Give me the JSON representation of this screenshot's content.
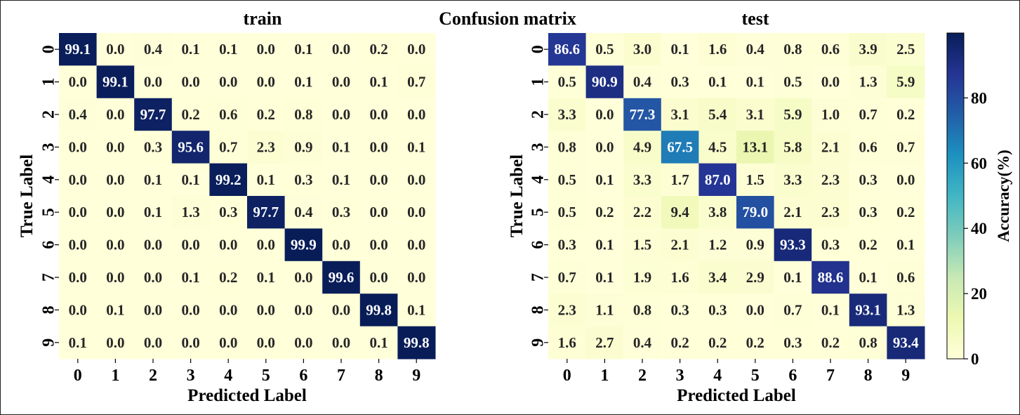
{
  "figure": {
    "title": "Confusion matrix"
  },
  "colorbar": {
    "label": "Accuracy(%)",
    "ticks": [
      0,
      20,
      40,
      60,
      80
    ],
    "range": [
      0,
      99.9
    ],
    "colormap": "YlGnBu",
    "colors": [
      "#ffffd9",
      "#edf8b1",
      "#c7e9b4",
      "#7fcdbb",
      "#41b6c4",
      "#1d91c0",
      "#225ea8",
      "#253494",
      "#081d58"
    ]
  },
  "chart_data": [
    {
      "type": "heatmap",
      "title": "train",
      "xlabel": "Predicted Label",
      "ylabel": "True Label",
      "x_categories": [
        "0",
        "1",
        "2",
        "3",
        "4",
        "5",
        "6",
        "7",
        "8",
        "9"
      ],
      "y_categories": [
        "0",
        "1",
        "2",
        "3",
        "4",
        "5",
        "6",
        "7",
        "8",
        "9"
      ],
      "values": [
        [
          99.1,
          0.0,
          0.4,
          0.1,
          0.1,
          0.0,
          0.1,
          0.0,
          0.2,
          0.0
        ],
        [
          0.0,
          99.1,
          0.0,
          0.0,
          0.0,
          0.0,
          0.1,
          0.0,
          0.1,
          0.7
        ],
        [
          0.4,
          0.0,
          97.7,
          0.2,
          0.6,
          0.2,
          0.8,
          0.0,
          0.0,
          0.0
        ],
        [
          0.0,
          0.0,
          0.3,
          95.6,
          0.7,
          2.3,
          0.9,
          0.1,
          0.0,
          0.1
        ],
        [
          0.0,
          0.0,
          0.1,
          0.1,
          99.2,
          0.1,
          0.3,
          0.1,
          0.0,
          0.0
        ],
        [
          0.0,
          0.0,
          0.1,
          1.3,
          0.3,
          97.7,
          0.4,
          0.3,
          0.0,
          0.0
        ],
        [
          0.0,
          0.0,
          0.0,
          0.0,
          0.0,
          0.0,
          99.9,
          0.0,
          0.0,
          0.0
        ],
        [
          0.0,
          0.0,
          0.0,
          0.1,
          0.2,
          0.1,
          0.0,
          99.6,
          0.0,
          0.0
        ],
        [
          0.0,
          0.1,
          0.0,
          0.0,
          0.0,
          0.0,
          0.0,
          0.0,
          99.8,
          0.1
        ],
        [
          0.1,
          0.0,
          0.0,
          0.0,
          0.0,
          0.0,
          0.0,
          0.0,
          0.1,
          99.8
        ]
      ]
    },
    {
      "type": "heatmap",
      "title": "test",
      "xlabel": "Predicted Label",
      "ylabel": "True Label",
      "x_categories": [
        "0",
        "1",
        "2",
        "3",
        "4",
        "5",
        "6",
        "7",
        "8",
        "9"
      ],
      "y_categories": [
        "0",
        "1",
        "2",
        "3",
        "4",
        "5",
        "6",
        "7",
        "8",
        "9"
      ],
      "values": [
        [
          86.6,
          0.5,
          3.0,
          0.1,
          1.6,
          0.4,
          0.8,
          0.6,
          3.9,
          2.5
        ],
        [
          0.5,
          90.9,
          0.4,
          0.3,
          0.1,
          0.1,
          0.5,
          0.0,
          1.3,
          5.9
        ],
        [
          3.3,
          0.0,
          77.3,
          3.1,
          5.4,
          3.1,
          5.9,
          1.0,
          0.7,
          0.2
        ],
        [
          0.8,
          0.0,
          4.9,
          67.5,
          4.5,
          13.1,
          5.8,
          2.1,
          0.6,
          0.7
        ],
        [
          0.5,
          0.1,
          3.3,
          1.7,
          87.0,
          1.5,
          3.3,
          2.3,
          0.3,
          0.0
        ],
        [
          0.5,
          0.2,
          2.2,
          9.4,
          3.8,
          79.0,
          2.1,
          2.3,
          0.3,
          0.2
        ],
        [
          0.3,
          0.1,
          1.5,
          2.1,
          1.2,
          0.9,
          93.3,
          0.3,
          0.2,
          0.1
        ],
        [
          0.7,
          0.1,
          1.9,
          1.6,
          3.4,
          2.9,
          0.1,
          88.6,
          0.1,
          0.6
        ],
        [
          2.3,
          1.1,
          0.8,
          0.3,
          0.3,
          0.0,
          0.7,
          0.1,
          93.1,
          1.3
        ],
        [
          1.6,
          2.7,
          0.4,
          0.2,
          0.2,
          0.2,
          0.3,
          0.2,
          0.8,
          93.4
        ]
      ]
    }
  ]
}
